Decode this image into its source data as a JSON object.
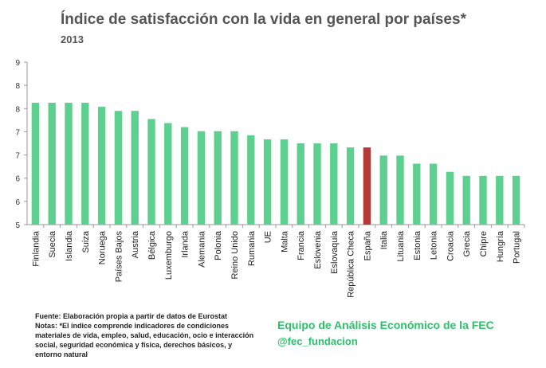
{
  "header": {
    "title": "Índice de satisfacción con la vida en general por países*",
    "subtitle": "2013"
  },
  "chart_data": {
    "type": "bar",
    "categories": [
      "Finlandia",
      "Suecia",
      "Islandia",
      "Suiza",
      "Noruega",
      "Países Bajos",
      "Austria",
      "Bélgica",
      "Luxemburgo",
      "Irlanda",
      "Alemania",
      "Polonia",
      "Reino Unido",
      "Rumania",
      "UE",
      "Malta",
      "Francia",
      "Eslovenia",
      "Eslovaquia",
      "República Checa",
      "España",
      "Italia",
      "Lituania",
      "Estonia",
      "Letonia",
      "Croacia",
      "Grecia",
      "Chipre",
      "Hungría",
      "Portugal"
    ],
    "values": [
      8.0,
      8.0,
      8.0,
      8.0,
      7.9,
      7.8,
      7.8,
      7.6,
      7.5,
      7.4,
      7.3,
      7.3,
      7.3,
      7.2,
      7.1,
      7.1,
      7.0,
      7.0,
      7.0,
      6.9,
      6.9,
      6.7,
      6.7,
      6.5,
      6.5,
      6.3,
      6.2,
      6.2,
      6.2,
      6.2
    ],
    "highlight_category": "España",
    "ylim": [
      5,
      9
    ],
    "tick_labels": [
      "5",
      "6",
      "6",
      "7",
      "7",
      "8",
      "8",
      "9"
    ],
    "grid": false,
    "colors": {
      "bar": "#5dcf8e",
      "highlight": "#b53a35",
      "axis": "#999999"
    }
  },
  "footer": {
    "source": "Fuente: Elaboración propia a partir de datos de Eurostat",
    "notes_lines": [
      "Notas: *El índice comprende indicadores de condiciones",
      "materiales de vida, empleo, salud, educación, ocio e interacción",
      "social, seguridad económica y física, derechos básicos, y",
      "entorno natural"
    ],
    "credit": "Equipo de Análisis Económico de la FEC",
    "handle": "@fec_fundacion",
    "credit_color": "#2fbf6b"
  }
}
